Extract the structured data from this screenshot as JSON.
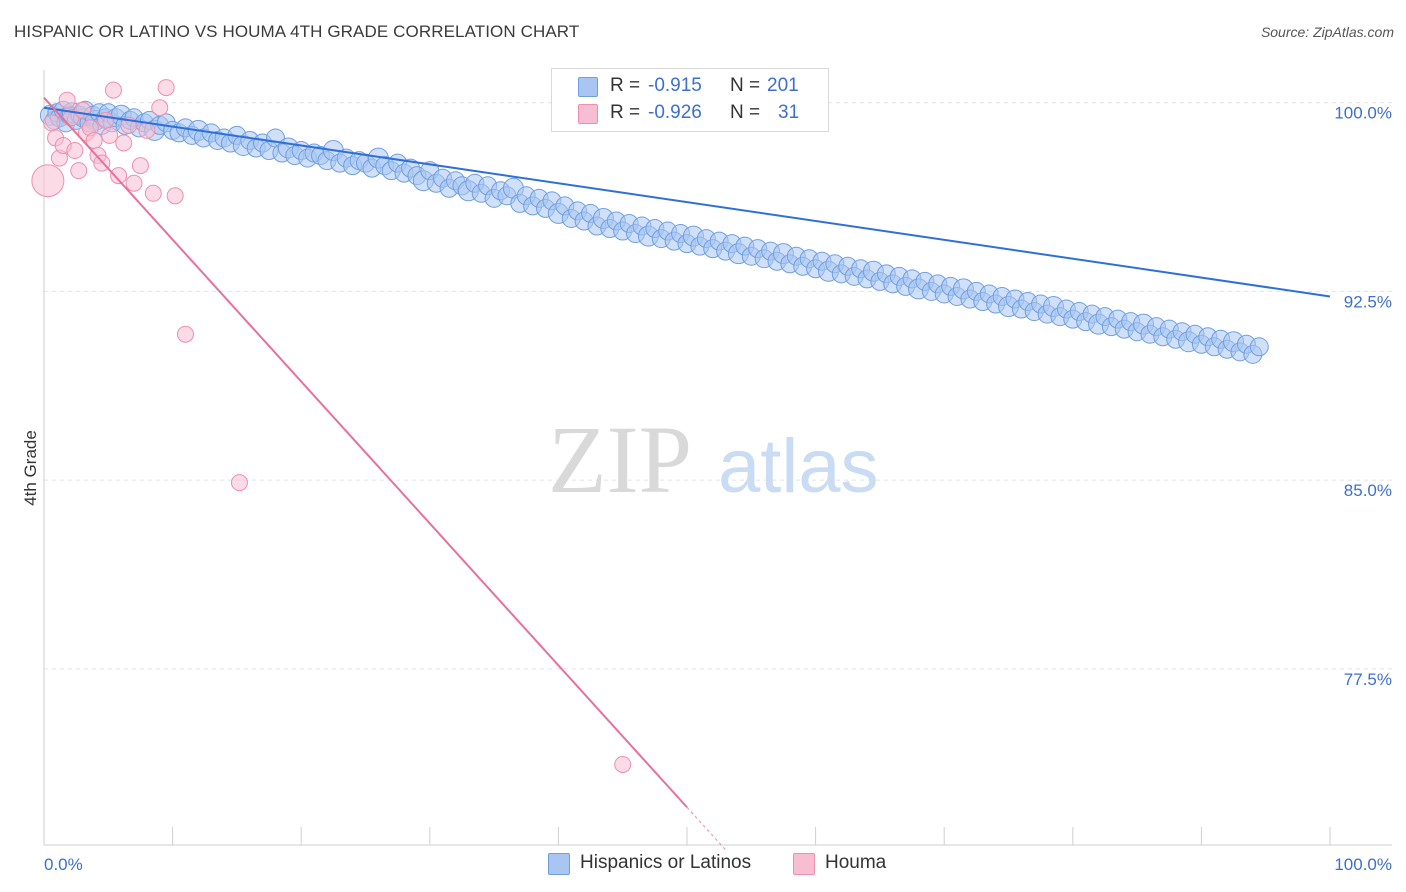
{
  "title": "HISPANIC OR LATINO VS HOUMA 4TH GRADE CORRELATION CHART",
  "source": "Source: ZipAtlas.com",
  "watermark": {
    "zip": "ZIP",
    "atlas": "atlas"
  },
  "legend_top": [
    {
      "r_label": "R =",
      "r_value": "-0.915",
      "n_label": "N =",
      "n_value": "201"
    },
    {
      "r_label": "R =",
      "r_value": "-0.926",
      "n_label": "N =",
      "n_value": "31"
    }
  ],
  "legend_bottom": [
    {
      "label": "Hispanics or Latinos"
    },
    {
      "label": "Houma"
    }
  ],
  "colors": {
    "blue_fill": "#a9c6f2",
    "blue_stroke": "#6f9fe0",
    "blue_line": "#2f6fd8",
    "pink_fill": "#f7bdd0",
    "pink_stroke": "#ee8fb0",
    "pink_line": "#e8719b",
    "axis_text": "#3d6fcf",
    "grid": "#e2e2e2"
  },
  "chart_data": {
    "type": "scatter",
    "title": "HISPANIC OR LATINO VS HOUMA 4TH GRADE CORRELATION CHART",
    "xlabel": "",
    "ylabel": "4th Grade",
    "xlim": [
      0,
      100
    ],
    "ylim": [
      70.5,
      101.3
    ],
    "x_tick_labels": [
      "0.0%",
      "100.0%"
    ],
    "y_ticks": [
      100.0,
      92.5,
      85.0,
      77.5
    ],
    "y_tick_labels": [
      "100.0%",
      "92.5%",
      "85.0%",
      "77.5%"
    ],
    "grid": true,
    "series": [
      {
        "name": "Hispanics or Latinos",
        "r": -0.915,
        "n": 201,
        "trend": {
          "x": [
            0.0,
            100.0
          ],
          "y": [
            99.8,
            92.3
          ]
        },
        "points": [
          [
            0.5,
            99.5
          ],
          [
            0.8,
            99.3
          ],
          [
            1.0,
            99.6
          ],
          [
            1.2,
            99.4
          ],
          [
            1.5,
            99.7
          ],
          [
            1.7,
            99.2
          ],
          [
            2.0,
            99.5
          ],
          [
            2.2,
            99.6
          ],
          [
            2.5,
            99.3
          ],
          [
            2.8,
            99.5
          ],
          [
            3.0,
            99.4
          ],
          [
            3.2,
            99.7
          ],
          [
            3.5,
            99.2
          ],
          [
            3.8,
            99.5
          ],
          [
            4.0,
            99.3
          ],
          [
            4.3,
            99.6
          ],
          [
            4.5,
            99.1
          ],
          [
            4.8,
            99.4
          ],
          [
            5.0,
            99.6
          ],
          [
            5.3,
            99.2
          ],
          [
            5.6,
            99.4
          ],
          [
            6.0,
            99.5
          ],
          [
            6.3,
            99.1
          ],
          [
            6.7,
            99.3
          ],
          [
            7.0,
            99.4
          ],
          [
            7.4,
            99.0
          ],
          [
            7.8,
            99.2
          ],
          [
            8.2,
            99.3
          ],
          [
            8.6,
            98.9
          ],
          [
            9.0,
            99.1
          ],
          [
            9.5,
            99.2
          ],
          [
            10.0,
            98.9
          ],
          [
            10.5,
            98.8
          ],
          [
            11.0,
            99.0
          ],
          [
            11.5,
            98.7
          ],
          [
            12.0,
            98.9
          ],
          [
            12.4,
            98.6
          ],
          [
            13.0,
            98.8
          ],
          [
            13.5,
            98.5
          ],
          [
            14.0,
            98.6
          ],
          [
            14.5,
            98.4
          ],
          [
            15.0,
            98.7
          ],
          [
            15.5,
            98.3
          ],
          [
            16.0,
            98.5
          ],
          [
            16.5,
            98.2
          ],
          [
            17.0,
            98.4
          ],
          [
            17.5,
            98.1
          ],
          [
            18.0,
            98.6
          ],
          [
            18.5,
            98.0
          ],
          [
            19.0,
            98.2
          ],
          [
            19.5,
            97.9
          ],
          [
            20.0,
            98.1
          ],
          [
            20.5,
            97.8
          ],
          [
            21.0,
            98.0
          ],
          [
            21.5,
            97.9
          ],
          [
            22.0,
            97.7
          ],
          [
            22.5,
            98.1
          ],
          [
            23.0,
            97.6
          ],
          [
            23.5,
            97.8
          ],
          [
            24.0,
            97.5
          ],
          [
            24.5,
            97.7
          ],
          [
            25.0,
            97.6
          ],
          [
            25.5,
            97.4
          ],
          [
            26.0,
            97.8
          ],
          [
            26.5,
            97.5
          ],
          [
            27.0,
            97.3
          ],
          [
            27.5,
            97.6
          ],
          [
            28.0,
            97.2
          ],
          [
            28.5,
            97.4
          ],
          [
            29.0,
            97.1
          ],
          [
            29.5,
            96.9
          ],
          [
            30.0,
            97.3
          ],
          [
            30.5,
            96.8
          ],
          [
            31.0,
            97.0
          ],
          [
            31.5,
            96.6
          ],
          [
            32.0,
            96.9
          ],
          [
            32.5,
            96.7
          ],
          [
            33.0,
            96.5
          ],
          [
            33.5,
            96.8
          ],
          [
            34.0,
            96.4
          ],
          [
            34.5,
            96.7
          ],
          [
            35.0,
            96.2
          ],
          [
            35.5,
            96.5
          ],
          [
            36.0,
            96.3
          ],
          [
            36.5,
            96.6
          ],
          [
            37.0,
            96.0
          ],
          [
            37.5,
            96.3
          ],
          [
            38.0,
            95.9
          ],
          [
            38.5,
            96.2
          ],
          [
            39.0,
            95.8
          ],
          [
            39.5,
            96.1
          ],
          [
            40.0,
            95.6
          ],
          [
            40.5,
            95.9
          ],
          [
            41.0,
            95.4
          ],
          [
            41.5,
            95.7
          ],
          [
            42.0,
            95.3
          ],
          [
            42.5,
            95.6
          ],
          [
            43.0,
            95.1
          ],
          [
            43.5,
            95.4
          ],
          [
            44.0,
            95.0
          ],
          [
            44.5,
            95.3
          ],
          [
            45.0,
            94.9
          ],
          [
            45.5,
            95.2
          ],
          [
            46.0,
            94.8
          ],
          [
            46.5,
            95.1
          ],
          [
            47.0,
            94.7
          ],
          [
            47.5,
            95.0
          ],
          [
            48.0,
            94.6
          ],
          [
            48.5,
            94.9
          ],
          [
            49.0,
            94.5
          ],
          [
            49.5,
            94.8
          ],
          [
            50.0,
            94.4
          ],
          [
            50.5,
            94.7
          ],
          [
            51.0,
            94.3
          ],
          [
            51.5,
            94.6
          ],
          [
            52.0,
            94.2
          ],
          [
            52.5,
            94.5
          ],
          [
            53.0,
            94.1
          ],
          [
            53.5,
            94.4
          ],
          [
            54.0,
            94.0
          ],
          [
            54.5,
            94.3
          ],
          [
            55.0,
            93.9
          ],
          [
            55.5,
            94.2
          ],
          [
            56.0,
            93.8
          ],
          [
            56.5,
            94.1
          ],
          [
            57.0,
            93.7
          ],
          [
            57.5,
            94.0
          ],
          [
            58.0,
            93.6
          ],
          [
            58.5,
            93.9
          ],
          [
            59.0,
            93.5
          ],
          [
            59.5,
            93.8
          ],
          [
            60.0,
            93.4
          ],
          [
            60.5,
            93.7
          ],
          [
            61.0,
            93.3
          ],
          [
            61.5,
            93.6
          ],
          [
            62.0,
            93.2
          ],
          [
            62.5,
            93.5
          ],
          [
            63.0,
            93.1
          ],
          [
            63.5,
            93.4
          ],
          [
            64.0,
            93.0
          ],
          [
            64.5,
            93.3
          ],
          [
            65.0,
            92.9
          ],
          [
            65.5,
            93.2
          ],
          [
            66.0,
            92.8
          ],
          [
            66.5,
            93.1
          ],
          [
            67.0,
            92.7
          ],
          [
            67.5,
            93.0
          ],
          [
            68.0,
            92.6
          ],
          [
            68.5,
            92.9
          ],
          [
            69.0,
            92.5
          ],
          [
            69.5,
            92.8
          ],
          [
            70.0,
            92.4
          ],
          [
            70.5,
            92.7
          ],
          [
            71.0,
            92.3
          ],
          [
            71.5,
            92.6
          ],
          [
            72.0,
            92.2
          ],
          [
            72.5,
            92.5
          ],
          [
            73.0,
            92.1
          ],
          [
            73.5,
            92.4
          ],
          [
            74.0,
            92.0
          ],
          [
            74.5,
            92.3
          ],
          [
            75.0,
            91.9
          ],
          [
            75.5,
            92.2
          ],
          [
            76.0,
            91.8
          ],
          [
            76.5,
            92.1
          ],
          [
            77.0,
            91.7
          ],
          [
            77.5,
            92.0
          ],
          [
            78.0,
            91.6
          ],
          [
            78.5,
            91.9
          ],
          [
            79.0,
            91.5
          ],
          [
            79.5,
            91.8
          ],
          [
            80.0,
            91.4
          ],
          [
            80.5,
            91.7
          ],
          [
            81.0,
            91.3
          ],
          [
            81.5,
            91.6
          ],
          [
            82.0,
            91.2
          ],
          [
            82.5,
            91.5
          ],
          [
            83.0,
            91.1
          ],
          [
            83.5,
            91.4
          ],
          [
            84.0,
            91.0
          ],
          [
            84.5,
            91.3
          ],
          [
            85.0,
            90.9
          ],
          [
            85.5,
            91.2
          ],
          [
            86.0,
            90.8
          ],
          [
            86.5,
            91.1
          ],
          [
            87.0,
            90.7
          ],
          [
            87.5,
            91.0
          ],
          [
            88.0,
            90.6
          ],
          [
            88.5,
            90.9
          ],
          [
            89.0,
            90.5
          ],
          [
            89.5,
            90.8
          ],
          [
            90.0,
            90.4
          ],
          [
            90.5,
            90.7
          ],
          [
            91.0,
            90.3
          ],
          [
            91.5,
            90.6
          ],
          [
            92.0,
            90.2
          ],
          [
            92.5,
            90.5
          ],
          [
            93.0,
            90.1
          ],
          [
            93.5,
            90.4
          ],
          [
            94.0,
            90.0
          ],
          [
            94.5,
            90.3
          ]
        ]
      },
      {
        "name": "Houma",
        "r": -0.926,
        "n": 31,
        "trend": {
          "x": [
            0.0,
            50.0
          ],
          "y": [
            100.2,
            72.0
          ]
        },
        "points": [
          [
            0.3,
            96.9
          ],
          [
            0.6,
            99.2
          ],
          [
            0.9,
            98.6
          ],
          [
            1.2,
            97.8
          ],
          [
            1.5,
            98.3
          ],
          [
            1.8,
            100.1
          ],
          [
            2.1,
            99.4
          ],
          [
            2.4,
            98.1
          ],
          [
            2.7,
            97.3
          ],
          [
            3.0,
            99.7
          ],
          [
            3.3,
            98.8
          ],
          [
            3.6,
            99.0
          ],
          [
            3.9,
            98.5
          ],
          [
            4.2,
            97.9
          ],
          [
            4.5,
            97.6
          ],
          [
            4.8,
            99.3
          ],
          [
            5.1,
            98.7
          ],
          [
            5.4,
            100.5
          ],
          [
            5.8,
            97.1
          ],
          [
            6.2,
            98.4
          ],
          [
            6.6,
            99.1
          ],
          [
            7.0,
            96.8
          ],
          [
            7.5,
            97.5
          ],
          [
            8.0,
            98.9
          ],
          [
            8.5,
            96.4
          ],
          [
            9.0,
            99.8
          ],
          [
            9.5,
            100.6
          ],
          [
            10.2,
            96.3
          ],
          [
            11.0,
            90.8
          ],
          [
            15.2,
            84.9
          ],
          [
            45.0,
            73.7
          ]
        ]
      }
    ]
  }
}
